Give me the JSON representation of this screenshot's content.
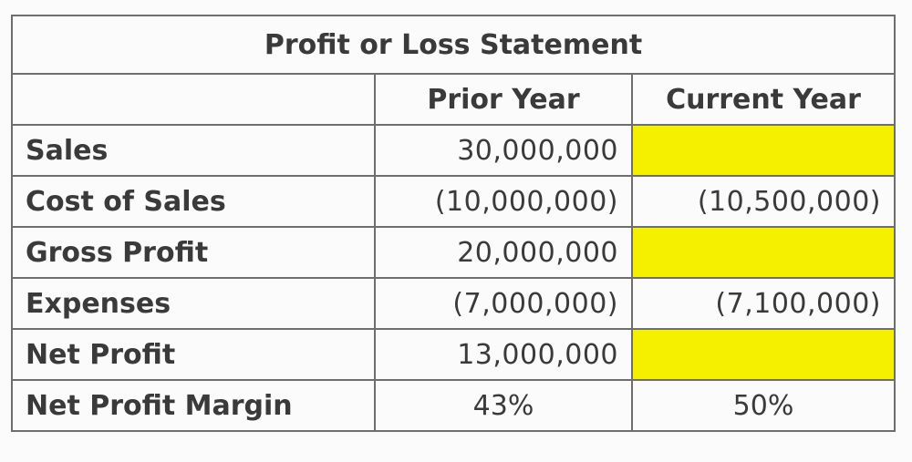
{
  "table": {
    "title": "Profit or Loss Statement",
    "headers": {
      "blank": "",
      "prior_year": "Prior Year",
      "current_year": "Current Year"
    },
    "rows": [
      {
        "label": "Sales",
        "prior": "30,000,000",
        "current": ""
      },
      {
        "label": "Cost of Sales",
        "prior": "(10,000,000)",
        "current": "(10,500,000)"
      },
      {
        "label": "Gross Profit",
        "prior": "20,000,000",
        "current": ""
      },
      {
        "label": "Expenses",
        "prior": "(7,000,000)",
        "current": "(7,100,000)"
      },
      {
        "label": "Net Profit",
        "prior": "13,000,000",
        "current": ""
      },
      {
        "label": "Net Profit Margin",
        "prior": "43%",
        "current": "50%"
      }
    ]
  },
  "colors": {
    "highlight": "#f4f000",
    "border": "#6e6e6e",
    "text": "#3a3a3a"
  }
}
